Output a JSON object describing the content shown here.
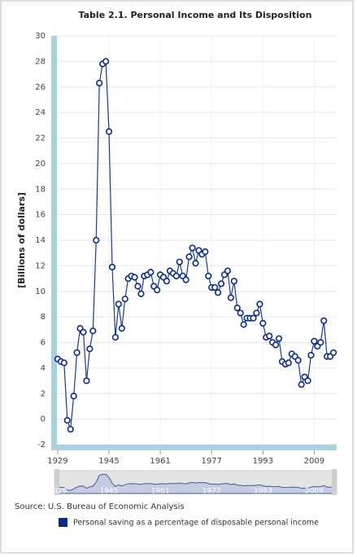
{
  "chart_data": {
    "type": "line",
    "title": "Table 2.1. Personal Income and Its Disposition",
    "y_label": "[Billions of dollars]",
    "source": "Source: U.S. Bureau of Economic Analysis",
    "x": [
      1929,
      1930,
      1931,
      1932,
      1933,
      1934,
      1935,
      1936,
      1937,
      1938,
      1939,
      1940,
      1941,
      1942,
      1943,
      1944,
      1945,
      1946,
      1947,
      1948,
      1949,
      1950,
      1951,
      1952,
      1953,
      1954,
      1955,
      1956,
      1957,
      1958,
      1959,
      1960,
      1961,
      1962,
      1963,
      1964,
      1965,
      1966,
      1967,
      1968,
      1969,
      1970,
      1971,
      1972,
      1973,
      1974,
      1975,
      1976,
      1977,
      1978,
      1979,
      1980,
      1981,
      1982,
      1983,
      1984,
      1985,
      1986,
      1987,
      1988,
      1989,
      1990,
      1991,
      1992,
      1993,
      1994,
      1995,
      1996,
      1997,
      1998,
      1999,
      2000,
      2001,
      2002,
      2003,
      2004,
      2005,
      2006,
      2007,
      2008,
      2009,
      2010,
      2011,
      2012,
      2013,
      2014,
      2015
    ],
    "series": [
      {
        "name": "Personal saving as a percentage of disposable personal income",
        "color": "#1a3a94",
        "values": [
          4.7,
          4.5,
          4.4,
          -0.1,
          -0.8,
          1.8,
          5.2,
          7.1,
          6.8,
          3.0,
          5.5,
          6.9,
          14.0,
          26.3,
          27.8,
          28.0,
          22.5,
          11.9,
          6.4,
          9.0,
          7.1,
          9.4,
          11.0,
          11.2,
          11.1,
          10.4,
          9.8,
          11.2,
          11.3,
          11.5,
          10.4,
          10.1,
          11.3,
          11.1,
          10.8,
          11.6,
          11.4,
          11.2,
          12.3,
          11.2,
          10.9,
          12.7,
          13.4,
          12.2,
          13.2,
          12.9,
          13.1,
          11.2,
          10.3,
          10.3,
          9.9,
          10.6,
          11.3,
          11.6,
          9.5,
          10.8,
          8.7,
          8.3,
          7.4,
          7.9,
          7.9,
          7.9,
          8.3,
          9.0,
          7.5,
          6.4,
          6.5,
          6.0,
          5.8,
          6.3,
          4.5,
          4.3,
          4.4,
          5.1,
          4.9,
          4.6,
          2.7,
          3.3,
          3.0,
          5.0,
          6.1,
          5.7,
          6.0,
          7.7,
          4.9,
          4.9,
          5.2
        ]
      }
    ],
    "xlim": [
      1928,
      2016
    ],
    "xticks": [
      1929,
      1945,
      1961,
      1977,
      1993,
      2009
    ],
    "ylim": [
      -2,
      30
    ],
    "yticks": [
      -2,
      0,
      2,
      4,
      6,
      8,
      10,
      12,
      14,
      16,
      18,
      20,
      22,
      24,
      26,
      28,
      30
    ],
    "grid": true
  }
}
